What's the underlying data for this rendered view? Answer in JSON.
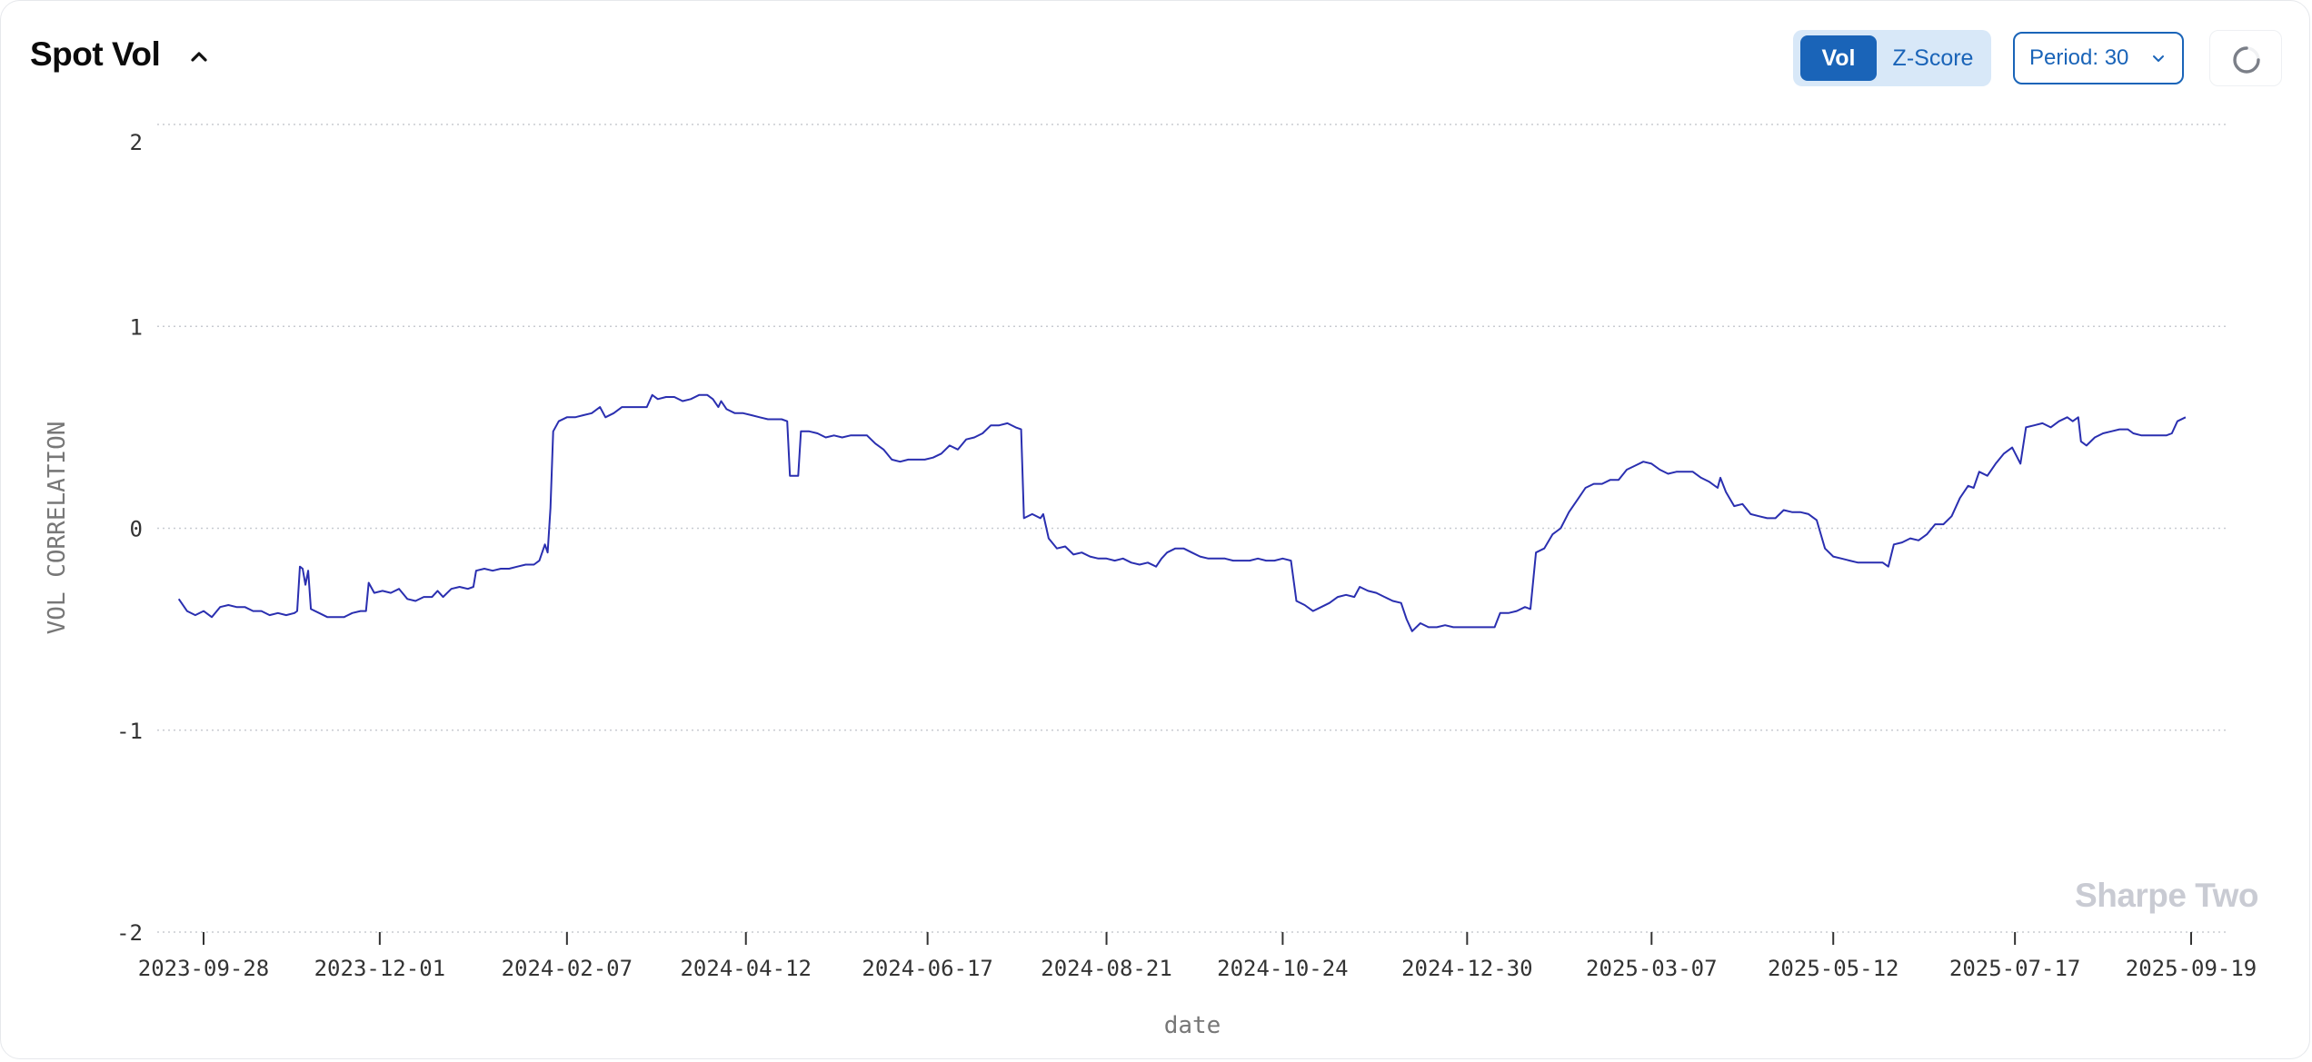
{
  "header": {
    "title": "Spot Vol",
    "collapse_icon": "chevron-up-icon"
  },
  "controls": {
    "toggle_options": [
      "Vol",
      "Z-Score"
    ],
    "selected_toggle": "Vol",
    "period_label": "Period: 30",
    "period_icon": "chevron-down-icon",
    "refresh_icon": "loading-spinner-icon"
  },
  "watermark": "Sharpe Two",
  "colors": {
    "line": "#2a2fb0",
    "accent": "#1a64b8",
    "toggle_bg": "#d8e8f8",
    "grid": "#c8cbd1"
  },
  "chart_data": {
    "type": "line",
    "title": "",
    "xlabel": "date",
    "ylabel": "VOL CORRELATION",
    "ylim": [
      -2,
      2
    ],
    "yticks": [
      2,
      1,
      0,
      -1,
      -2
    ],
    "xticks": [
      "2023-09-28",
      "2023-12-01",
      "2024-02-07",
      "2024-04-12",
      "2024-06-17",
      "2024-08-21",
      "2024-10-24",
      "2024-12-30",
      "2025-03-07",
      "2025-05-12",
      "2025-07-17",
      "2025-09-19"
    ],
    "xlim": [
      "2023-09-19",
      "2025-09-20"
    ],
    "grid": true,
    "series": [
      {
        "values": [
          [
            "2023-09-19",
            -0.35
          ],
          [
            "2023-09-22",
            -0.41
          ],
          [
            "2023-09-25",
            -0.43
          ],
          [
            "2023-09-28",
            -0.41
          ],
          [
            "2023-10-01",
            -0.44
          ],
          [
            "2023-10-04",
            -0.39
          ],
          [
            "2023-10-07",
            -0.38
          ],
          [
            "2023-10-10",
            -0.39
          ],
          [
            "2023-10-13",
            -0.39
          ],
          [
            "2023-10-16",
            -0.41
          ],
          [
            "2023-10-19",
            -0.41
          ],
          [
            "2023-10-22",
            -0.43
          ],
          [
            "2023-10-25",
            -0.42
          ],
          [
            "2023-10-28",
            -0.43
          ],
          [
            "2023-10-31",
            -0.42
          ],
          [
            "2023-11-01",
            -0.41
          ],
          [
            "2023-11-02",
            -0.19
          ],
          [
            "2023-11-03",
            -0.2
          ],
          [
            "2023-11-04",
            -0.28
          ],
          [
            "2023-11-05",
            -0.21
          ],
          [
            "2023-11-06",
            -0.4
          ],
          [
            "2023-11-09",
            -0.42
          ],
          [
            "2023-11-12",
            -0.44
          ],
          [
            "2023-11-15",
            -0.44
          ],
          [
            "2023-11-18",
            -0.44
          ],
          [
            "2023-11-21",
            -0.42
          ],
          [
            "2023-11-24",
            -0.41
          ],
          [
            "2023-11-26",
            -0.41
          ],
          [
            "2023-11-27",
            -0.27
          ],
          [
            "2023-11-29",
            -0.32
          ],
          [
            "2023-12-02",
            -0.31
          ],
          [
            "2023-12-05",
            -0.32
          ],
          [
            "2023-12-08",
            -0.3
          ],
          [
            "2023-12-11",
            -0.35
          ],
          [
            "2023-12-14",
            -0.36
          ],
          [
            "2023-12-17",
            -0.34
          ],
          [
            "2023-12-20",
            -0.34
          ],
          [
            "2023-12-22",
            -0.31
          ],
          [
            "2023-12-24",
            -0.34
          ],
          [
            "2023-12-27",
            -0.3
          ],
          [
            "2023-12-30",
            -0.29
          ],
          [
            "2024-01-02",
            -0.3
          ],
          [
            "2024-01-04",
            -0.29
          ],
          [
            "2024-01-05",
            -0.21
          ],
          [
            "2024-01-08",
            -0.2
          ],
          [
            "2024-01-11",
            -0.21
          ],
          [
            "2024-01-14",
            -0.2
          ],
          [
            "2024-01-17",
            -0.2
          ],
          [
            "2024-01-20",
            -0.19
          ],
          [
            "2024-01-23",
            -0.18
          ],
          [
            "2024-01-26",
            -0.18
          ],
          [
            "2024-01-28",
            -0.16
          ],
          [
            "2024-01-30",
            -0.08
          ],
          [
            "2024-01-31",
            -0.12
          ],
          [
            "2024-02-01",
            0.1
          ],
          [
            "2024-02-02",
            0.48
          ],
          [
            "2024-02-04",
            0.53
          ],
          [
            "2024-02-07",
            0.55
          ],
          [
            "2024-02-10",
            0.55
          ],
          [
            "2024-02-13",
            0.56
          ],
          [
            "2024-02-16",
            0.57
          ],
          [
            "2024-02-19",
            0.6
          ],
          [
            "2024-02-21",
            0.55
          ],
          [
            "2024-02-24",
            0.57
          ],
          [
            "2024-02-27",
            0.6
          ],
          [
            "2024-03-01",
            0.6
          ],
          [
            "2024-03-04",
            0.6
          ],
          [
            "2024-03-07",
            0.6
          ],
          [
            "2024-03-09",
            0.66
          ],
          [
            "2024-03-11",
            0.64
          ],
          [
            "2024-03-14",
            0.65
          ],
          [
            "2024-03-17",
            0.65
          ],
          [
            "2024-03-20",
            0.63
          ],
          [
            "2024-03-23",
            0.64
          ],
          [
            "2024-03-26",
            0.66
          ],
          [
            "2024-03-29",
            0.66
          ],
          [
            "2024-03-31",
            0.64
          ],
          [
            "2024-04-02",
            0.6
          ],
          [
            "2024-04-03",
            0.63
          ],
          [
            "2024-04-05",
            0.59
          ],
          [
            "2024-04-08",
            0.57
          ],
          [
            "2024-04-11",
            0.57
          ],
          [
            "2024-04-14",
            0.56
          ],
          [
            "2024-04-17",
            0.55
          ],
          [
            "2024-04-20",
            0.54
          ],
          [
            "2024-04-23",
            0.54
          ],
          [
            "2024-04-25",
            0.54
          ],
          [
            "2024-04-27",
            0.53
          ],
          [
            "2024-04-28",
            0.26
          ],
          [
            "2024-05-01",
            0.26
          ],
          [
            "2024-05-02",
            0.48
          ],
          [
            "2024-05-05",
            0.48
          ],
          [
            "2024-05-08",
            0.47
          ],
          [
            "2024-05-11",
            0.45
          ],
          [
            "2024-05-14",
            0.46
          ],
          [
            "2024-05-17",
            0.45
          ],
          [
            "2024-05-20",
            0.46
          ],
          [
            "2024-05-23",
            0.46
          ],
          [
            "2024-05-26",
            0.46
          ],
          [
            "2024-05-29",
            0.42
          ],
          [
            "2024-06-01",
            0.39
          ],
          [
            "2024-06-04",
            0.34
          ],
          [
            "2024-06-07",
            0.33
          ],
          [
            "2024-06-10",
            0.34
          ],
          [
            "2024-06-13",
            0.34
          ],
          [
            "2024-06-16",
            0.34
          ],
          [
            "2024-06-19",
            0.35
          ],
          [
            "2024-06-22",
            0.37
          ],
          [
            "2024-06-25",
            0.41
          ],
          [
            "2024-06-28",
            0.39
          ],
          [
            "2024-07-01",
            0.44
          ],
          [
            "2024-07-04",
            0.45
          ],
          [
            "2024-07-07",
            0.47
          ],
          [
            "2024-07-10",
            0.51
          ],
          [
            "2024-07-13",
            0.51
          ],
          [
            "2024-07-16",
            0.52
          ],
          [
            "2024-07-19",
            0.5
          ],
          [
            "2024-07-21",
            0.49
          ],
          [
            "2024-07-22",
            0.05
          ],
          [
            "2024-07-25",
            0.07
          ],
          [
            "2024-07-28",
            0.05
          ],
          [
            "2024-07-29",
            0.07
          ],
          [
            "2024-07-31",
            -0.05
          ],
          [
            "2024-08-03",
            -0.1
          ],
          [
            "2024-08-06",
            -0.09
          ],
          [
            "2024-08-09",
            -0.13
          ],
          [
            "2024-08-12",
            -0.12
          ],
          [
            "2024-08-15",
            -0.14
          ],
          [
            "2024-08-18",
            -0.15
          ],
          [
            "2024-08-21",
            -0.15
          ],
          [
            "2024-08-24",
            -0.16
          ],
          [
            "2024-08-27",
            -0.15
          ],
          [
            "2024-08-30",
            -0.17
          ],
          [
            "2024-09-02",
            -0.18
          ],
          [
            "2024-09-05",
            -0.17
          ],
          [
            "2024-09-08",
            -0.19
          ],
          [
            "2024-09-10",
            -0.15
          ],
          [
            "2024-09-12",
            -0.12
          ],
          [
            "2024-09-15",
            -0.1
          ],
          [
            "2024-09-18",
            -0.1
          ],
          [
            "2024-09-21",
            -0.12
          ],
          [
            "2024-09-24",
            -0.14
          ],
          [
            "2024-09-27",
            -0.15
          ],
          [
            "2024-09-30",
            -0.15
          ],
          [
            "2024-10-03",
            -0.15
          ],
          [
            "2024-10-06",
            -0.16
          ],
          [
            "2024-10-09",
            -0.16
          ],
          [
            "2024-10-12",
            -0.16
          ],
          [
            "2024-10-15",
            -0.15
          ],
          [
            "2024-10-18",
            -0.16
          ],
          [
            "2024-10-21",
            -0.16
          ],
          [
            "2024-10-24",
            -0.15
          ],
          [
            "2024-10-27",
            -0.16
          ],
          [
            "2024-10-29",
            -0.36
          ],
          [
            "2024-11-01",
            -0.38
          ],
          [
            "2024-11-04",
            -0.41
          ],
          [
            "2024-11-07",
            -0.39
          ],
          [
            "2024-11-10",
            -0.37
          ],
          [
            "2024-11-13",
            -0.34
          ],
          [
            "2024-11-16",
            -0.33
          ],
          [
            "2024-11-19",
            -0.34
          ],
          [
            "2024-11-21",
            -0.29
          ],
          [
            "2024-11-24",
            -0.31
          ],
          [
            "2024-11-27",
            -0.32
          ],
          [
            "2024-11-30",
            -0.34
          ],
          [
            "2024-12-03",
            -0.36
          ],
          [
            "2024-12-06",
            -0.37
          ],
          [
            "2024-12-08",
            -0.45
          ],
          [
            "2024-12-10",
            -0.51
          ],
          [
            "2024-12-13",
            -0.47
          ],
          [
            "2024-12-16",
            -0.49
          ],
          [
            "2024-12-19",
            -0.49
          ],
          [
            "2024-12-22",
            -0.48
          ],
          [
            "2024-12-25",
            -0.49
          ],
          [
            "2024-12-28",
            -0.49
          ],
          [
            "2024-12-31",
            -0.49
          ],
          [
            "2025-01-03",
            -0.49
          ],
          [
            "2025-01-06",
            -0.49
          ],
          [
            "2025-01-09",
            -0.49
          ],
          [
            "2025-01-11",
            -0.42
          ],
          [
            "2025-01-14",
            -0.42
          ],
          [
            "2025-01-17",
            -0.41
          ],
          [
            "2025-01-20",
            -0.39
          ],
          [
            "2025-01-22",
            -0.4
          ],
          [
            "2025-01-24",
            -0.12
          ],
          [
            "2025-01-27",
            -0.1
          ],
          [
            "2025-01-30",
            -0.03
          ],
          [
            "2025-02-02",
            0.0
          ],
          [
            "2025-02-05",
            0.08
          ],
          [
            "2025-02-08",
            0.14
          ],
          [
            "2025-02-11",
            0.2
          ],
          [
            "2025-02-14",
            0.22
          ],
          [
            "2025-02-17",
            0.22
          ],
          [
            "2025-02-20",
            0.24
          ],
          [
            "2025-02-23",
            0.24
          ],
          [
            "2025-02-26",
            0.29
          ],
          [
            "2025-03-01",
            0.31
          ],
          [
            "2025-03-04",
            0.33
          ],
          [
            "2025-03-07",
            0.32
          ],
          [
            "2025-03-10",
            0.29
          ],
          [
            "2025-03-13",
            0.27
          ],
          [
            "2025-03-16",
            0.28
          ],
          [
            "2025-03-19",
            0.28
          ],
          [
            "2025-03-22",
            0.28
          ],
          [
            "2025-03-25",
            0.25
          ],
          [
            "2025-03-28",
            0.23
          ],
          [
            "2025-03-31",
            0.2
          ],
          [
            "2025-04-01",
            0.25
          ],
          [
            "2025-04-03",
            0.18
          ],
          [
            "2025-04-06",
            0.11
          ],
          [
            "2025-04-09",
            0.12
          ],
          [
            "2025-04-12",
            0.07
          ],
          [
            "2025-04-15",
            0.06
          ],
          [
            "2025-04-18",
            0.05
          ],
          [
            "2025-04-21",
            0.05
          ],
          [
            "2025-04-24",
            0.09
          ],
          [
            "2025-04-27",
            0.08
          ],
          [
            "2025-04-30",
            0.08
          ],
          [
            "2025-05-03",
            0.07
          ],
          [
            "2025-05-06",
            0.04
          ],
          [
            "2025-05-09",
            -0.1
          ],
          [
            "2025-05-12",
            -0.14
          ],
          [
            "2025-05-15",
            -0.15
          ],
          [
            "2025-05-18",
            -0.16
          ],
          [
            "2025-05-21",
            -0.17
          ],
          [
            "2025-05-24",
            -0.17
          ],
          [
            "2025-05-27",
            -0.17
          ],
          [
            "2025-05-30",
            -0.17
          ],
          [
            "2025-06-01",
            -0.19
          ],
          [
            "2025-06-03",
            -0.08
          ],
          [
            "2025-06-06",
            -0.07
          ],
          [
            "2025-06-09",
            -0.05
          ],
          [
            "2025-06-12",
            -0.06
          ],
          [
            "2025-06-15",
            -0.03
          ],
          [
            "2025-06-18",
            0.02
          ],
          [
            "2025-06-21",
            0.02
          ],
          [
            "2025-06-24",
            0.06
          ],
          [
            "2025-06-27",
            0.15
          ],
          [
            "2025-06-30",
            0.21
          ],
          [
            "2025-07-02",
            0.2
          ],
          [
            "2025-07-04",
            0.28
          ],
          [
            "2025-07-07",
            0.26
          ],
          [
            "2025-07-10",
            0.32
          ],
          [
            "2025-07-13",
            0.37
          ],
          [
            "2025-07-16",
            0.4
          ],
          [
            "2025-07-19",
            0.32
          ],
          [
            "2025-07-21",
            0.5
          ],
          [
            "2025-07-24",
            0.51
          ],
          [
            "2025-07-27",
            0.52
          ],
          [
            "2025-07-30",
            0.5
          ],
          [
            "2025-08-02",
            0.53
          ],
          [
            "2025-08-05",
            0.55
          ],
          [
            "2025-08-07",
            0.53
          ],
          [
            "2025-08-09",
            0.55
          ],
          [
            "2025-08-10",
            0.43
          ],
          [
            "2025-08-12",
            0.41
          ],
          [
            "2025-08-15",
            0.45
          ],
          [
            "2025-08-18",
            0.47
          ],
          [
            "2025-08-21",
            0.48
          ],
          [
            "2025-08-24",
            0.49
          ],
          [
            "2025-08-27",
            0.49
          ],
          [
            "2025-08-29",
            0.47
          ],
          [
            "2025-09-01",
            0.46
          ],
          [
            "2025-09-04",
            0.46
          ],
          [
            "2025-09-07",
            0.46
          ],
          [
            "2025-09-10",
            0.46
          ],
          [
            "2025-09-12",
            0.47
          ],
          [
            "2025-09-14",
            0.53
          ],
          [
            "2025-09-17",
            0.55
          ]
        ]
      }
    ]
  }
}
